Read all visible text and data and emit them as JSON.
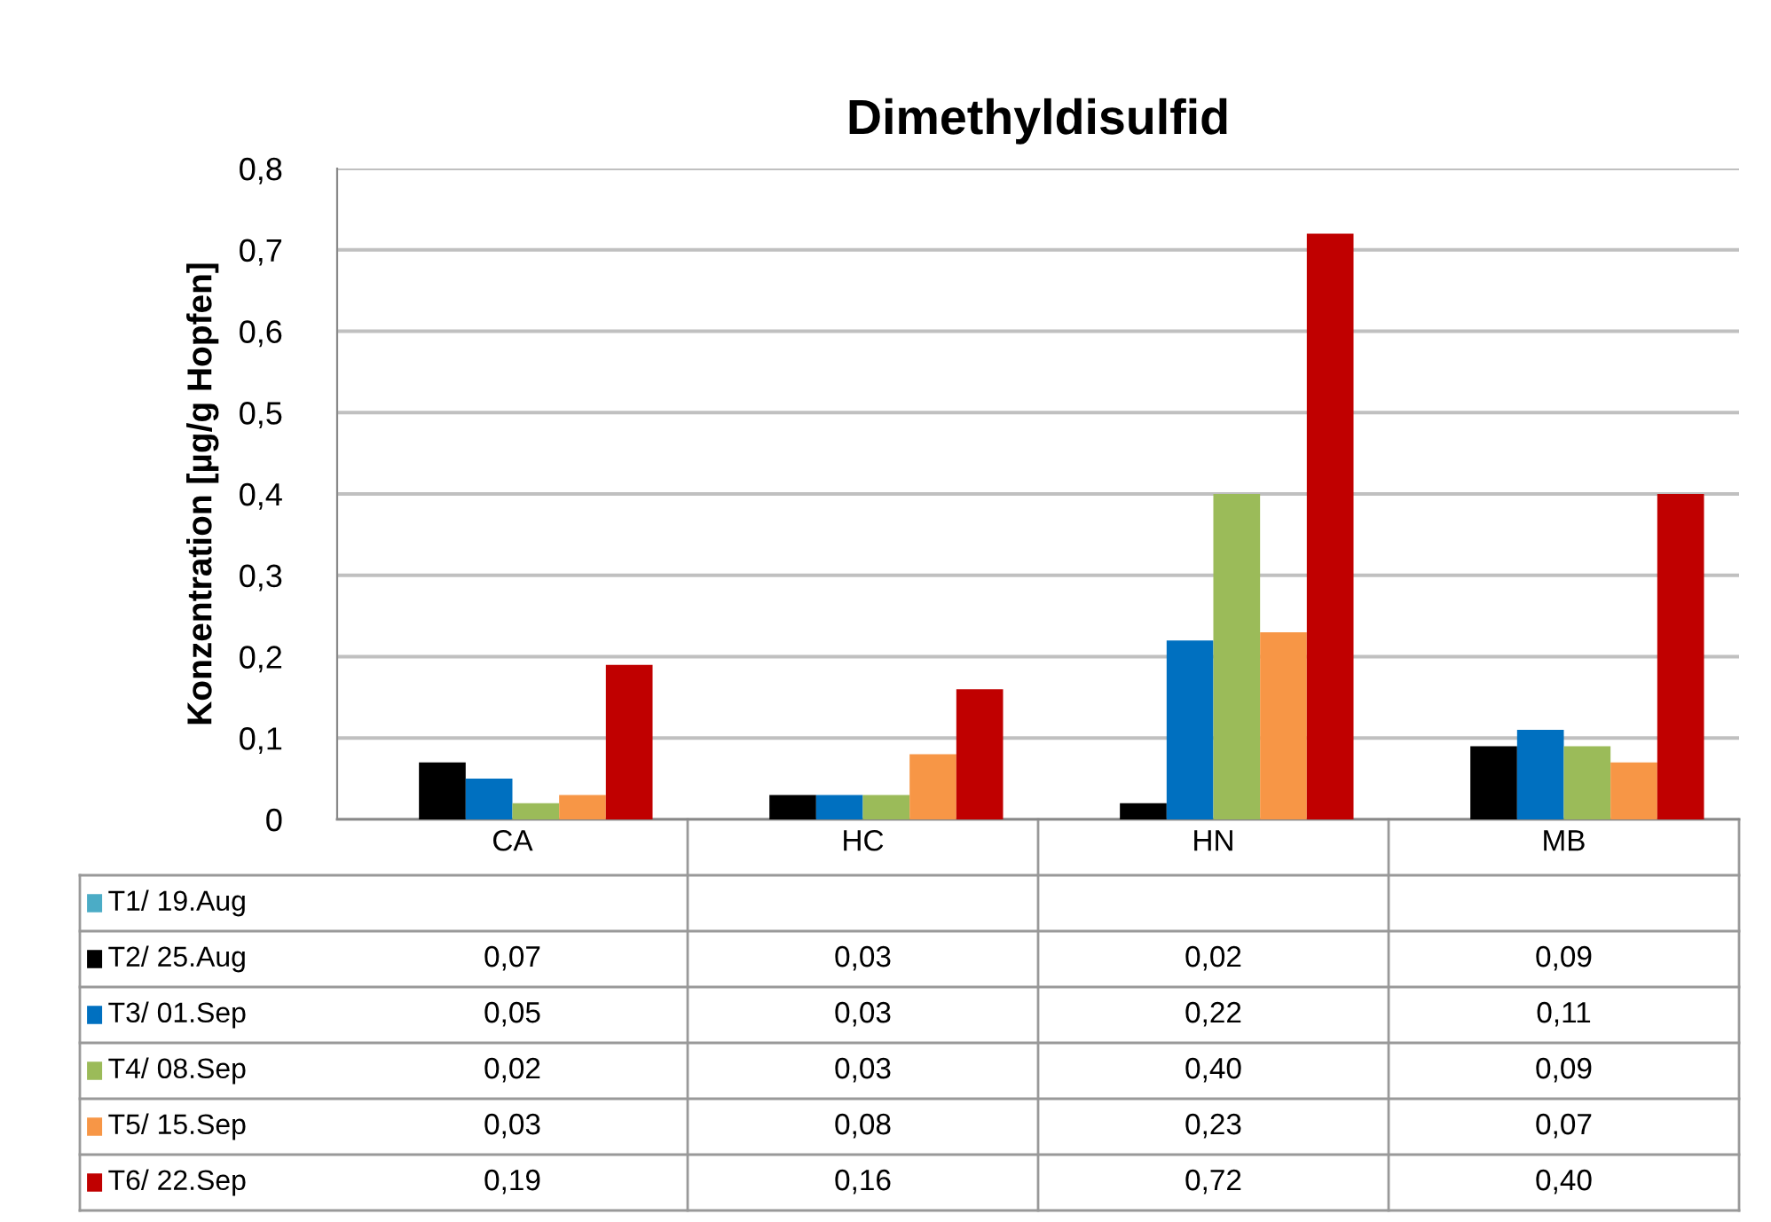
{
  "chart_data": {
    "type": "bar",
    "title": "Dimethyldisulfid",
    "ylabel": "Konzentration [µg/g Hopfen]",
    "categories": [
      "CA",
      "HC",
      "HN",
      "MB"
    ],
    "series": [
      {
        "name": "T1/ 19.Aug",
        "color": "#4bacc6",
        "values": [
          null,
          null,
          null,
          null
        ],
        "value_labels": [
          null,
          null,
          null,
          null
        ]
      },
      {
        "name": "T2/ 25.Aug",
        "color": "#000000",
        "values": [
          0.07,
          0.03,
          0.02,
          0.09
        ],
        "value_labels": [
          "0,07",
          "0,03",
          "0,02",
          "0,09"
        ]
      },
      {
        "name": "T3/ 01.Sep",
        "color": "#0070c0",
        "values": [
          0.05,
          0.03,
          0.22,
          0.11
        ],
        "value_labels": [
          "0,05",
          "0,03",
          "0,22",
          "0,11"
        ]
      },
      {
        "name": "T4/ 08.Sep",
        "color": "#9bbb59",
        "values": [
          0.02,
          0.03,
          0.4,
          0.09
        ],
        "value_labels": [
          "0,02",
          "0,03",
          "0,40",
          "0,09"
        ]
      },
      {
        "name": "T5/ 15.Sep",
        "color": "#f79646",
        "values": [
          0.03,
          0.08,
          0.23,
          0.07
        ],
        "value_labels": [
          "0,03",
          "0,08",
          "0,23",
          "0,07"
        ]
      },
      {
        "name": "T6/ 22.Sep",
        "color": "#c00000",
        "values": [
          0.19,
          0.16,
          0.72,
          0.4
        ],
        "value_labels": [
          "0,19",
          "0,16",
          "0,72",
          "0,40"
        ]
      }
    ],
    "ylim": [
      0,
      0.8
    ],
    "yticks": [
      {
        "value": 0,
        "label": "0"
      },
      {
        "value": 0.1,
        "label": "0,1"
      },
      {
        "value": 0.2,
        "label": "0,2"
      },
      {
        "value": 0.3,
        "label": "0,3"
      },
      {
        "value": 0.4,
        "label": "0,4"
      },
      {
        "value": 0.5,
        "label": "0,5"
      },
      {
        "value": 0.6,
        "label": "0,6"
      },
      {
        "value": 0.7,
        "label": "0,7"
      },
      {
        "value": 0.8,
        "label": "0,8"
      }
    ],
    "grid": "y",
    "legend": "bottom"
  }
}
